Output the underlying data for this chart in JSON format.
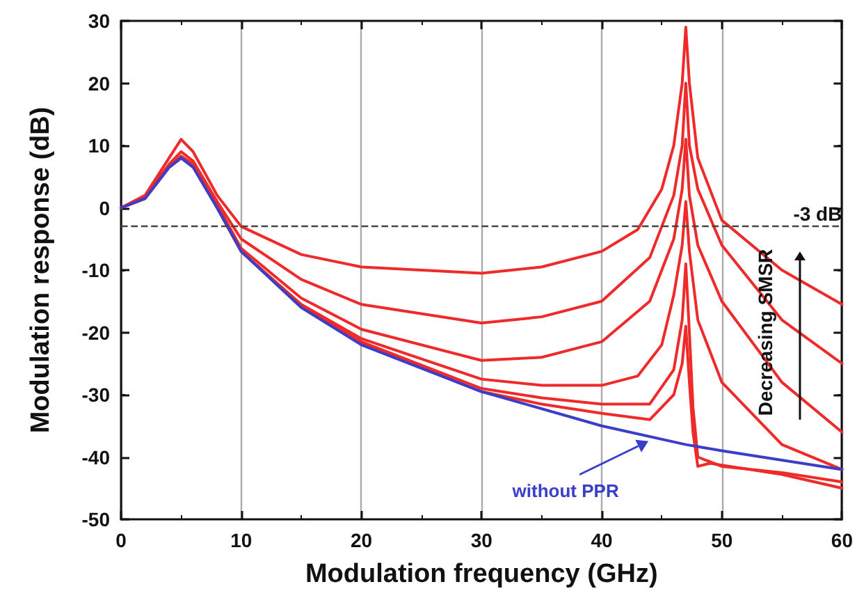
{
  "chart_data": {
    "type": "line",
    "xlabel": "Modulation frequency (GHz)",
    "ylabel": "Modulation response (dB)",
    "xlim": [
      0,
      60
    ],
    "xticks": [
      0,
      10,
      20,
      30,
      40,
      50,
      60
    ],
    "ylim": [
      -50,
      30
    ],
    "yticks": [
      -50,
      -40,
      -30,
      -20,
      -10,
      0,
      10,
      20,
      30
    ],
    "grid": "x",
    "marker": "none",
    "line_style": "solid",
    "ref_lines": [
      {
        "axis": "y",
        "value": -3,
        "label": "-3 dB",
        "color": "#444444",
        "line_style": "dashed"
      }
    ],
    "annotations": [
      "Decreasing SMSR"
    ],
    "series": [
      {
        "color": "#ee2a2a",
        "x": [
          0,
          2,
          4,
          5,
          6,
          8,
          10,
          15,
          20,
          30,
          35,
          40,
          43,
          45,
          46,
          46.7,
          47,
          47.3,
          48,
          50,
          55,
          60
        ],
        "values": [
          0,
          2,
          8,
          11,
          9,
          2,
          -3,
          -7.5,
          -9.5,
          -10.5,
          -9.5,
          -7,
          -3.5,
          3,
          10,
          20,
          29,
          20,
          8,
          -2,
          -10,
          -15.5
        ]
      },
      {
        "color": "#ee2a2a",
        "x": [
          0,
          2,
          4,
          5,
          6,
          8,
          10,
          15,
          20,
          30,
          35,
          40,
          44,
          46,
          46.7,
          47,
          47.3,
          48,
          50,
          55,
          60
        ],
        "values": [
          0,
          1.8,
          7,
          9,
          7.5,
          1,
          -5,
          -11.5,
          -15.5,
          -18.5,
          -17.5,
          -15,
          -8,
          2,
          10,
          20,
          10,
          3,
          -6,
          -18,
          -25
        ]
      },
      {
        "color": "#ee2a2a",
        "x": [
          0,
          2,
          4,
          5,
          6,
          8,
          10,
          15,
          20,
          30,
          35,
          40,
          44,
          46,
          46.7,
          47,
          47.3,
          48,
          50,
          55,
          60
        ],
        "values": [
          0,
          1.6,
          6.7,
          8.3,
          7,
          0.5,
          -6.5,
          -14.5,
          -19.5,
          -24.5,
          -24,
          -21.5,
          -15,
          -5,
          3,
          11,
          2,
          -6,
          -15,
          -28,
          -36
        ]
      },
      {
        "color": "#ee2a2a",
        "x": [
          0,
          2,
          4,
          5,
          6,
          8,
          10,
          15,
          20,
          30,
          35,
          40,
          43,
          45,
          46,
          46.7,
          47,
          47.3,
          48,
          50,
          55,
          60
        ],
        "values": [
          0,
          1.5,
          6.6,
          8.1,
          6.7,
          0.2,
          -7,
          -15.5,
          -21,
          -27.5,
          -28.5,
          -28.5,
          -27,
          -22,
          -14,
          -6,
          1,
          -7,
          -18,
          -28,
          -38,
          -42
        ]
      },
      {
        "color": "#ee2a2a",
        "x": [
          0,
          2,
          4,
          5,
          6,
          8,
          10,
          15,
          20,
          30,
          35,
          40,
          44,
          46,
          46.7,
          47,
          47.3,
          47.6,
          48,
          50,
          55,
          60
        ],
        "values": [
          0,
          1.5,
          6.5,
          8,
          6.6,
          0,
          -7,
          -15.8,
          -21.5,
          -29,
          -30.5,
          -31.5,
          -31.5,
          -26,
          -18,
          -9,
          -20,
          -32,
          -40,
          -41.5,
          -42.5,
          -44
        ]
      },
      {
        "color": "#ee2a2a",
        "x": [
          0,
          2,
          4,
          5,
          6,
          8,
          10,
          15,
          20,
          30,
          35,
          40,
          44,
          46,
          46.7,
          47,
          47.3,
          47.6,
          48,
          49,
          50,
          55,
          60
        ],
        "values": [
          0,
          1.5,
          6.5,
          8,
          6.6,
          0,
          -7,
          -15.9,
          -21.8,
          -29.5,
          -31.5,
          -33,
          -34,
          -30,
          -25,
          -19,
          -28,
          -36,
          -41.5,
          -41,
          -41.3,
          -42.8,
          -45
        ]
      },
      {
        "name": "without PPR",
        "color": "#3a3ec8",
        "x": [
          0,
          2,
          4,
          5,
          6,
          8,
          10,
          15,
          20,
          30,
          40,
          47,
          50,
          55,
          60
        ],
        "values": [
          0,
          1.5,
          6.5,
          8,
          6.5,
          0,
          -7,
          -16,
          -22,
          -29.5,
          -35,
          -38,
          -39,
          -40.5,
          -42
        ]
      }
    ]
  }
}
